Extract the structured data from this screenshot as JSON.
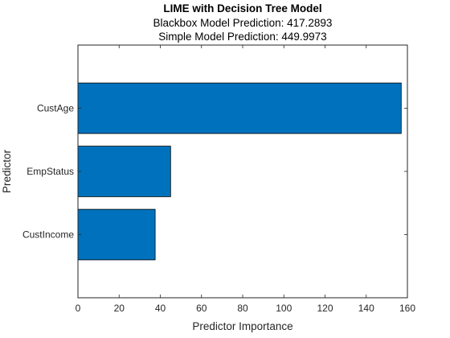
{
  "chart_data": {
    "type": "bar",
    "orientation": "horizontal",
    "title": "LIME with Decision Tree Model",
    "subtitle_lines": [
      "Blackbox Model Prediction: 417.2893",
      "Simple Model Prediction: 449.9973"
    ],
    "xlabel": "Predictor Importance",
    "ylabel": "Predictor",
    "categories": [
      "CustAge",
      "EmpStatus",
      "CustIncome"
    ],
    "values": [
      157,
      45,
      37.5
    ],
    "xlim": [
      0,
      160
    ],
    "xticks": [
      "0",
      "20",
      "40",
      "60",
      "80",
      "100",
      "120",
      "140",
      "160"
    ],
    "bar_color": "#0072BD",
    "bar_edge_color": "#000000",
    "grid": false,
    "legend": "none"
  }
}
